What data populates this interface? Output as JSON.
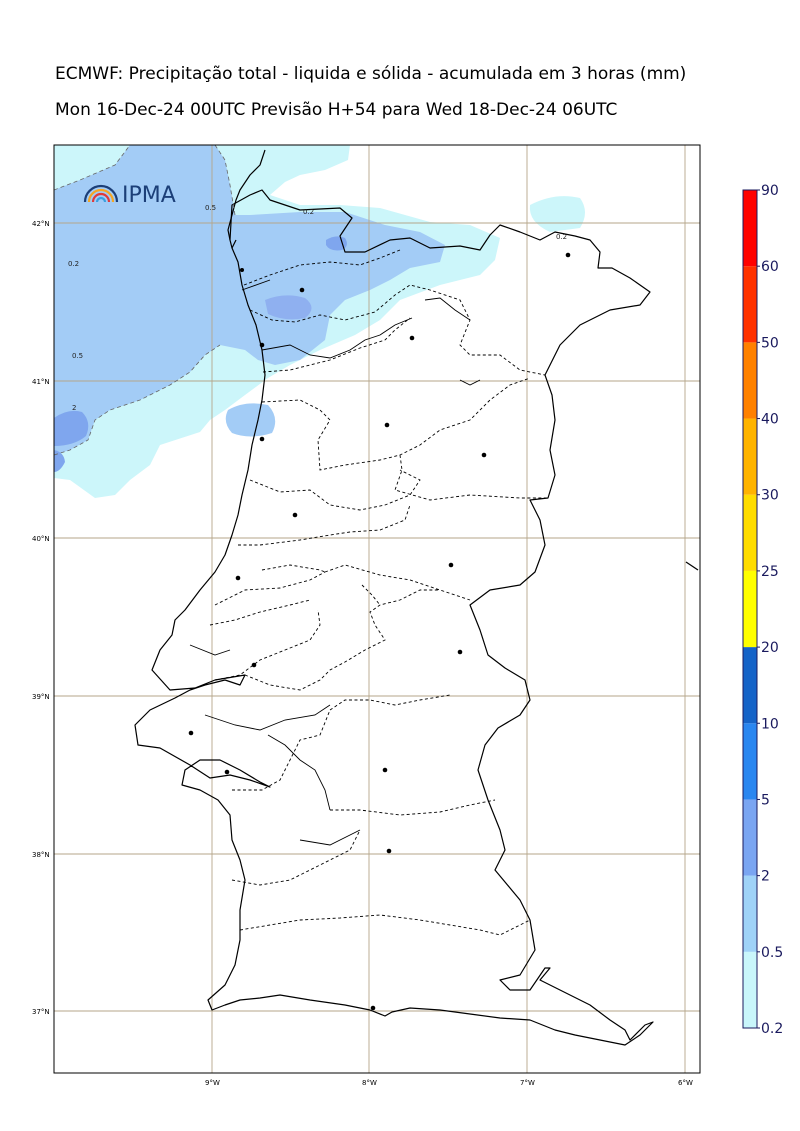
{
  "title": {
    "line1": "ECMWF: Precipitação total - liquida e sólida - acumulada em 3 horas (mm)",
    "line2": "Mon 16-Dec-24 00UTC Previsão H+54 para Wed 18-Dec-24 06UTC"
  },
  "logo": {
    "text": "IPMA"
  },
  "axes": {
    "lat_labels": [
      "42°N",
      "41°N",
      "40°N",
      "39°N",
      "38°N",
      "37°N"
    ],
    "lon_labels": [
      "9°W",
      "8°W",
      "7°W",
      "6°W"
    ]
  },
  "contour_labels": [
    "0.2",
    "0.5",
    "0.2",
    "0.5",
    "2",
    "0.2"
  ],
  "colorbar": {
    "levels": [
      "0.2",
      "0.5",
      "2",
      "5",
      "10",
      "20",
      "25",
      "30",
      "40",
      "50",
      "60",
      "90"
    ],
    "colors": [
      "#c9f6fb",
      "#9fd2f8",
      "#7aa5f2",
      "#2a86f0",
      "#1563c8",
      "#ffff00",
      "#ffdc00",
      "#ffb300",
      "#ff8000",
      "#ff3000",
      "#ff0000",
      "#ff00aa"
    ]
  },
  "colors": {
    "light_cyan": "#ccf6fa",
    "light_blue": "#a3ccf6",
    "mid_blue": "#7fa6ee",
    "grid": "#b5a68a"
  }
}
